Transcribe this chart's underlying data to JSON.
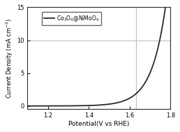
{
  "title": "",
  "xlabel": "Potential(V vs RHE)",
  "ylabel": "Current Density (mA cm⁻²)",
  "legend_label": "Co$_3$O$_4$@NiMoO$_4$",
  "xlim": [
    1.1,
    1.8
  ],
  "ylim": [
    -0.5,
    15
  ],
  "xticks": [
    1.2,
    1.4,
    1.6,
    1.8
  ],
  "yticks": [
    0,
    5,
    10,
    15
  ],
  "hline_y": 10,
  "vline_x": 1.63,
  "curve_color": "#2a2a2a",
  "hline_color": "#c0c0c0",
  "vline_color": "#c0c0c0",
  "background_color": "#ffffff",
  "x_start": 1.1,
  "x_end": 1.775,
  "exp_scale": 14.5,
  "exp_shift": 1.32,
  "y_top": 15.0
}
